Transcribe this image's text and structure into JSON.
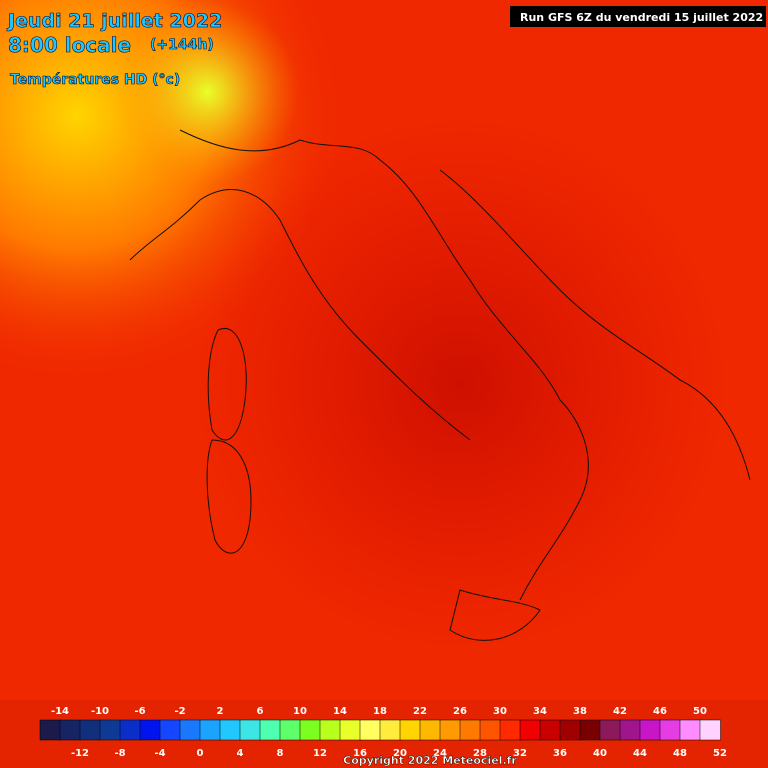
{
  "header": {
    "date": "Jeudi 21 juillet 2022",
    "time": "8:00 locale",
    "lead": "(+144h)",
    "product": "Températures HD (°c)",
    "run": "Run GFS 6Z du vendredi 15 juillet 2022"
  },
  "legend": {
    "range": [
      -16,
      52
    ],
    "colors": [
      "#1b1b4b",
      "#162463",
      "#122f7c",
      "#0e3a96",
      "#0a2fc8",
      "#0015ee",
      "#1447ff",
      "#1a78ff",
      "#1aa3ff",
      "#20c8ff",
      "#3ce6e6",
      "#4dffb0",
      "#5dff6a",
      "#7cff1e",
      "#b8ff1e",
      "#e8ff2a",
      "#ffff60",
      "#ffec3c",
      "#ffd400",
      "#ffb800",
      "#ff9a00",
      "#ff7a00",
      "#ff5500",
      "#ff2a00",
      "#f00000",
      "#c80000",
      "#a00000",
      "#780000",
      "#8c1a5a",
      "#a0158c",
      "#c815c8",
      "#e63ce6",
      "#ff8cff",
      "#ffd2ff"
    ],
    "top_labels": [
      -14,
      -10,
      -6,
      -2,
      2,
      6,
      10,
      14,
      18,
      22,
      26,
      30,
      34,
      38,
      42,
      46,
      50
    ],
    "bottom_labels": [
      -12,
      -8,
      -4,
      0,
      4,
      8,
      12,
      16,
      20,
      24,
      28,
      32,
      36,
      40,
      44,
      48,
      52
    ]
  },
  "footer": {
    "copyright": "Copyright 2022 Meteociel.fr"
  }
}
